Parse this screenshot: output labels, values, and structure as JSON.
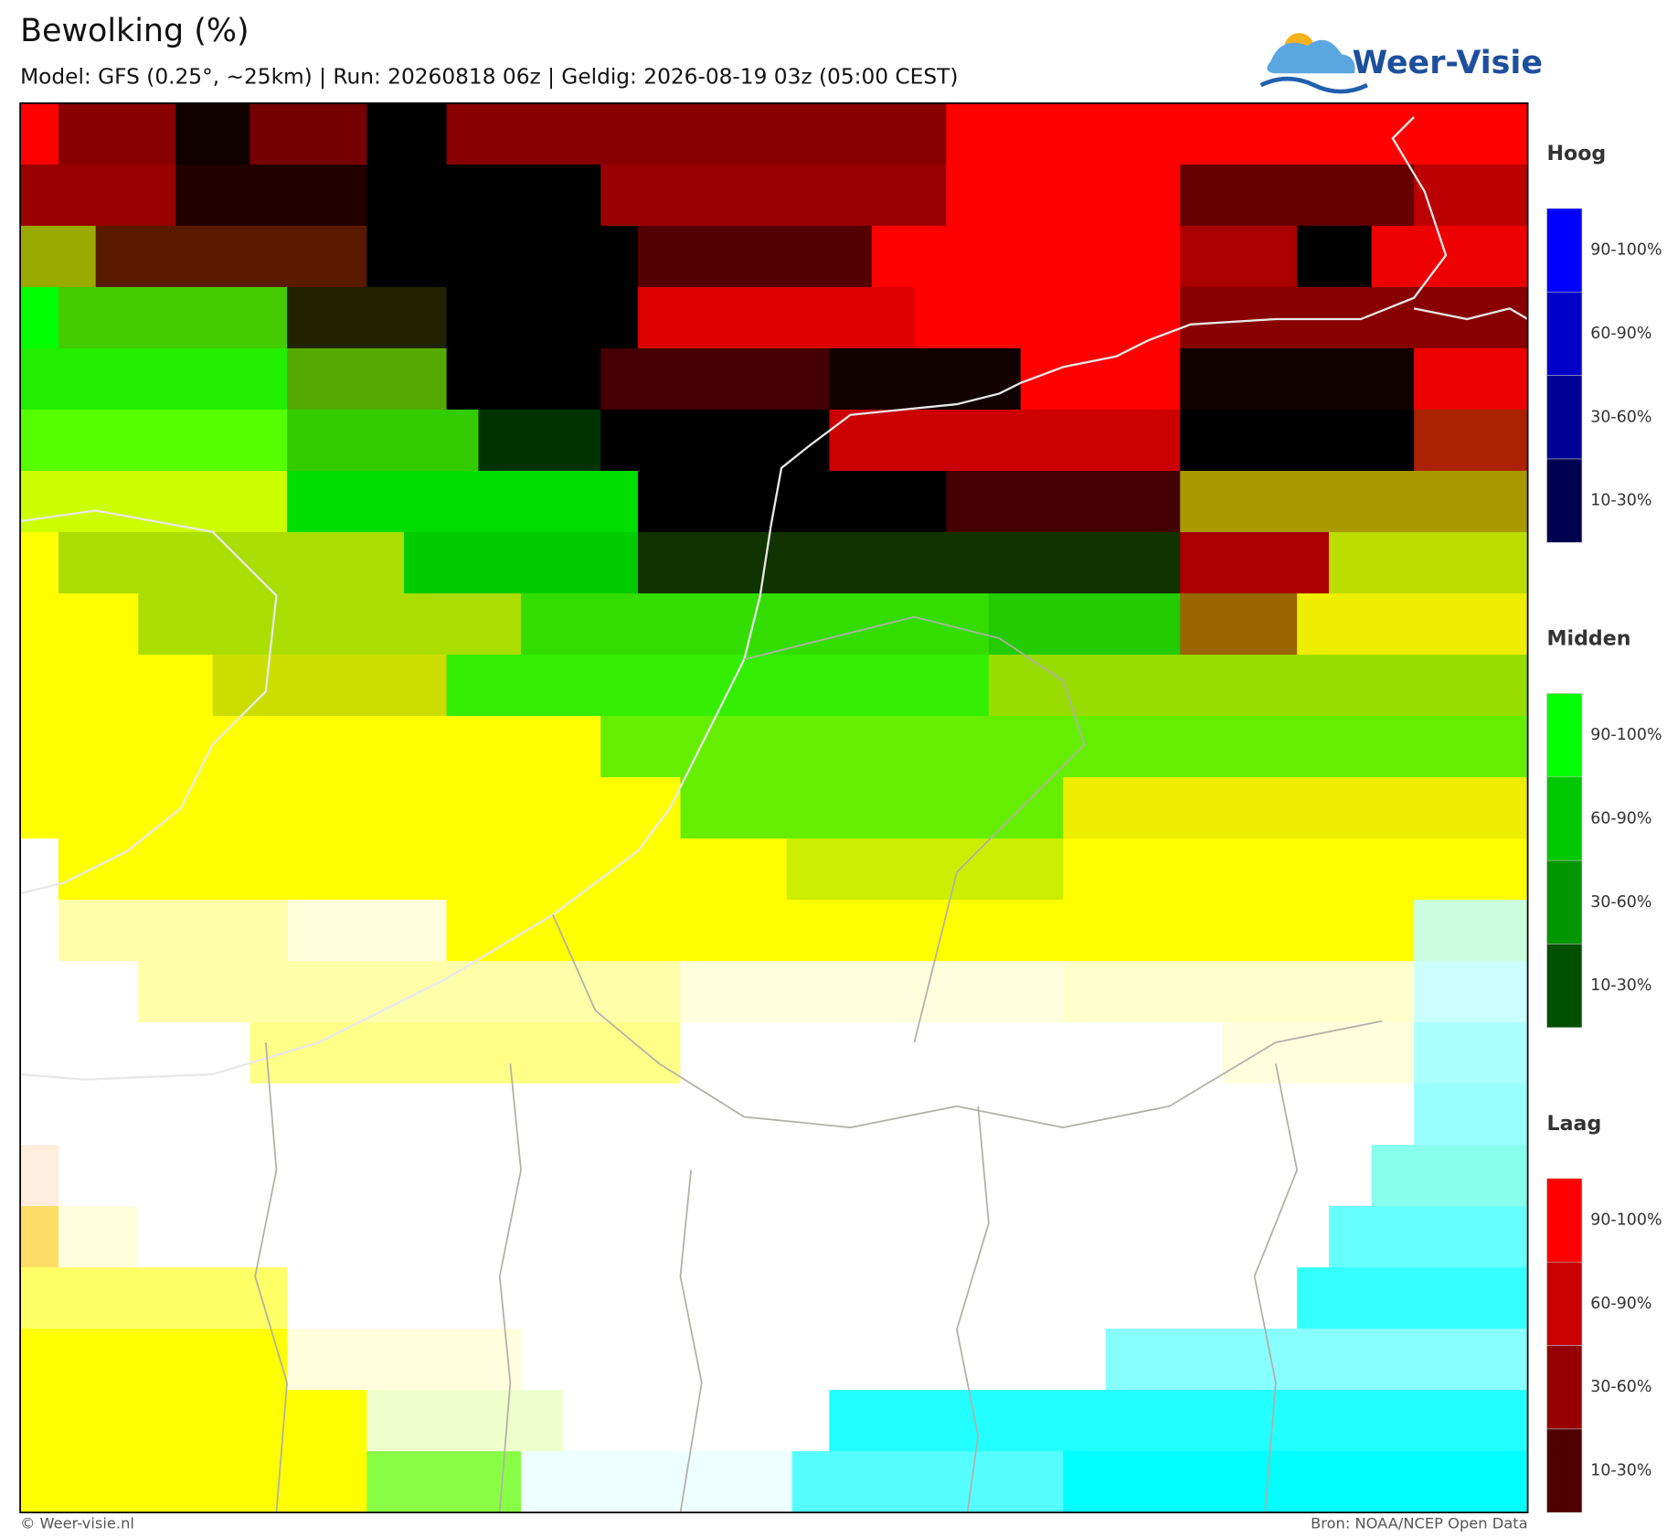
{
  "header": {
    "title": "Bewolking (%)",
    "subtitle": "Model: GFS (0.25°, ~25km)  |  Run: 20260818 06z  |  Geldig: 2026-08-19 03z (05:00 CEST)",
    "logo": "Weer-Visie"
  },
  "legend": {
    "groups": [
      {
        "title": "Hoog",
        "labels": [
          "90-100%",
          "60-90%",
          "30-60%",
          "10-30%"
        ]
      },
      {
        "title": "Midden",
        "labels": [
          "90-100%",
          "60-90%",
          "30-60%",
          "10-30%"
        ]
      },
      {
        "title": "Laag",
        "labels": [
          "90-100%",
          "60-90%",
          "30-60%",
          "10-30%"
        ]
      }
    ]
  },
  "footer": {
    "left": "© Weer-visie.nl",
    "right": "Bron: NOAA/NCEP Open Data"
  }
}
